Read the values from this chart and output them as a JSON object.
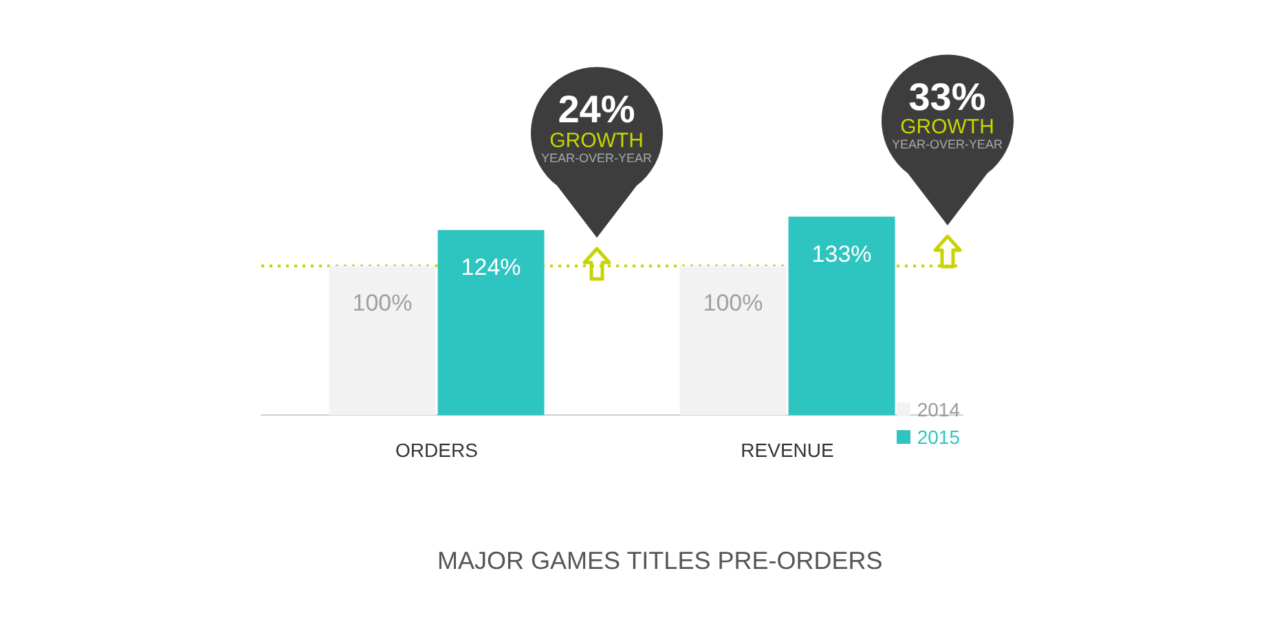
{
  "chart_data": {
    "type": "bar",
    "title": "MAJOR GAMES TITLES PRE-ORDERS",
    "categories": [
      "ORDERS",
      "REVENUE"
    ],
    "series": [
      {
        "name": "2014",
        "color": "#f2f2f2",
        "values": [
          100,
          100
        ],
        "value_labels": [
          "100%",
          "100%"
        ]
      },
      {
        "name": "2015",
        "color": "#2ec4c0",
        "values": [
          124,
          133
        ],
        "value_labels": [
          "124%",
          "133%"
        ]
      }
    ],
    "legend": "bottom right",
    "grid": false,
    "ref_lines": [
      {
        "axis": "y",
        "value": 100,
        "color": "#c8d400",
        "line_style": "dotted"
      }
    ],
    "annotations": [
      "24%",
      "GROWTH",
      "YEAR-OVER-YEAR",
      "33%",
      "GROWTH",
      "YEAR-OVER-YEAR"
    ]
  }
}
